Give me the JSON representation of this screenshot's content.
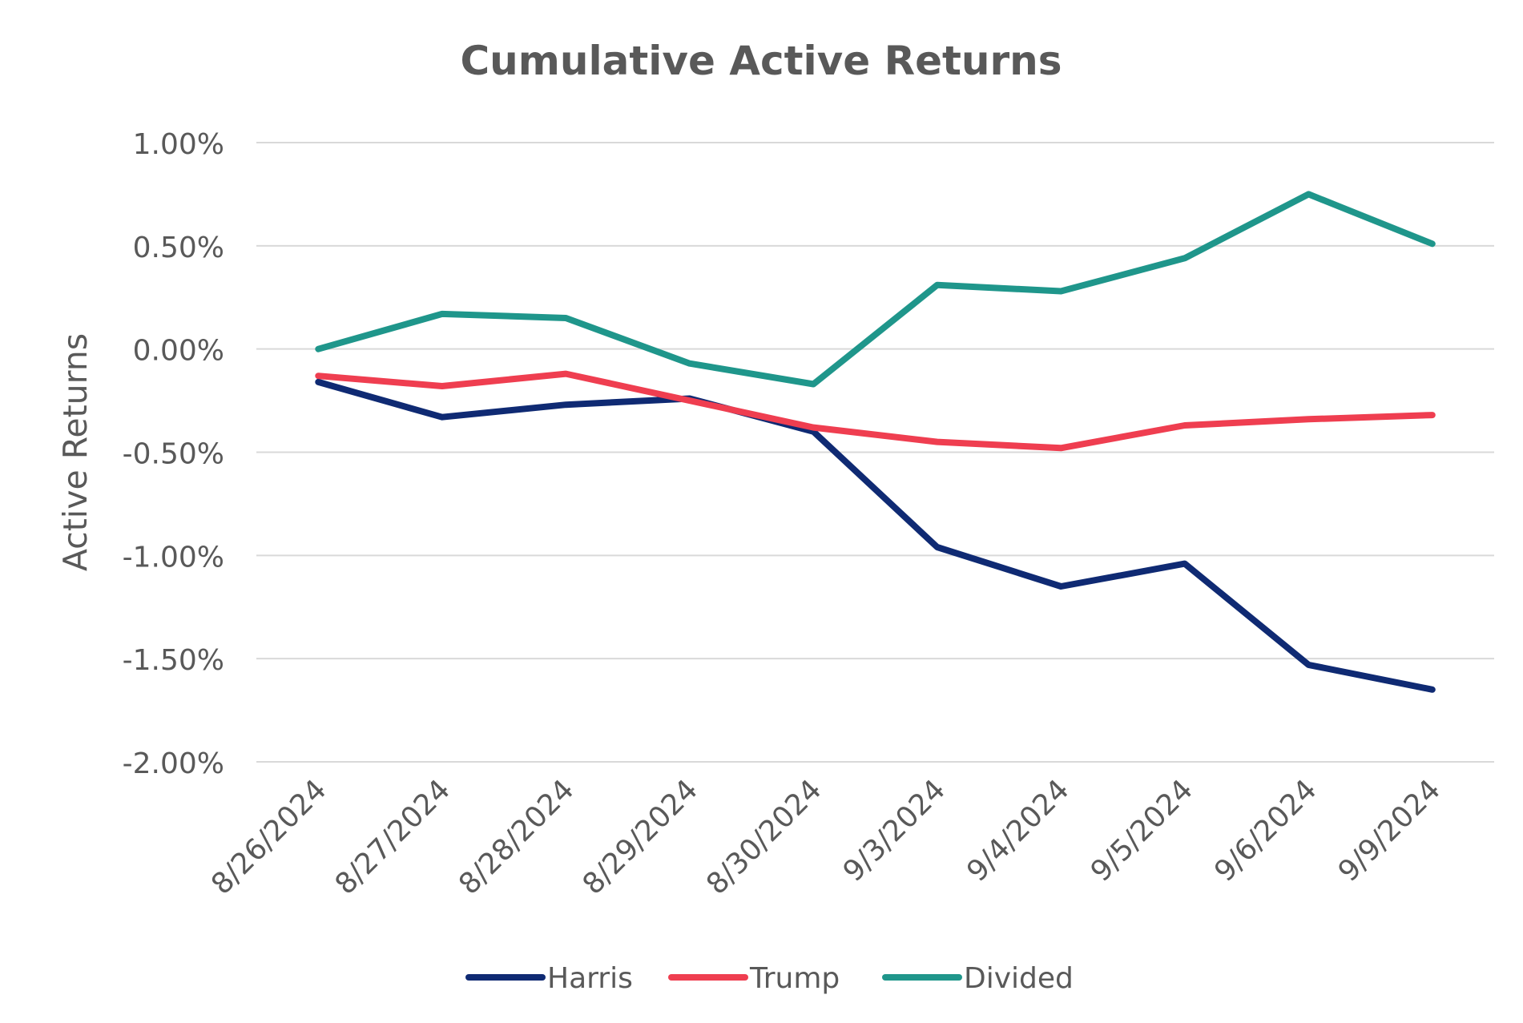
{
  "chart_data": {
    "type": "line",
    "title": "Cumulative Active Returns",
    "xlabel": "",
    "ylabel": "Active Returns",
    "categories": [
      "8/26/2024",
      "8/27/2024",
      "8/28/2024",
      "8/29/2024",
      "8/30/2024",
      "9/3/2024",
      "9/4/2024",
      "9/5/2024",
      "9/6/2024",
      "9/9/2024"
    ],
    "yticks": [
      "1.00%",
      "0.50%",
      "0.00%",
      "-0.50%",
      "-1.00%",
      "-1.50%",
      "-2.00%"
    ],
    "ylim": [
      -2.0,
      1.0
    ],
    "y_unit": "%",
    "grid": true,
    "legend_position": "bottom",
    "series": [
      {
        "name": "Harris",
        "color": "#0f2a73",
        "values": [
          -0.16,
          -0.33,
          -0.27,
          -0.24,
          -0.4,
          -0.96,
          -1.15,
          -1.04,
          -1.53,
          -1.65
        ]
      },
      {
        "name": "Trump",
        "color": "#ef3e50",
        "values": [
          -0.13,
          -0.18,
          -0.12,
          -0.25,
          -0.38,
          -0.45,
          -0.48,
          -0.37,
          -0.34,
          -0.32
        ]
      },
      {
        "name": "Divided",
        "color": "#1f968b",
        "values": [
          0.0,
          0.17,
          0.15,
          -0.07,
          -0.17,
          0.31,
          0.28,
          0.44,
          0.75,
          0.51
        ]
      }
    ]
  }
}
